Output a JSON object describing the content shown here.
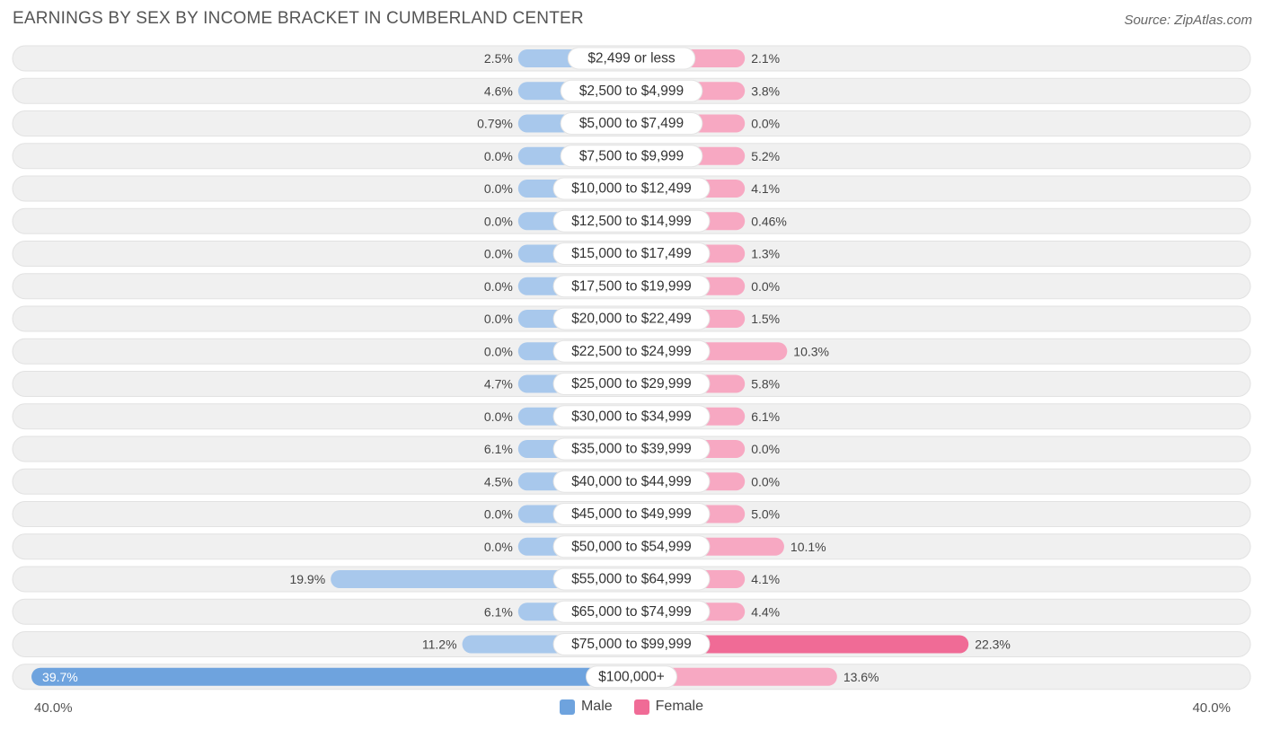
{
  "title": "EARNINGS BY SEX BY INCOME BRACKET IN CUMBERLAND CENTER",
  "source": "Source: ZipAtlas.com",
  "colors": {
    "male": "#a8c8ec",
    "male_strong": "#6ea3de",
    "female": "#f7a8c2",
    "female_strong": "#f06b96",
    "track": "#f0f0f0"
  },
  "chart_data": {
    "type": "bar",
    "orientation": "horizontal-diverging",
    "title": "EARNINGS BY SEX BY INCOME BRACKET IN CUMBERLAND CENTER",
    "categories": [
      "$2,499 or less",
      "$2,500 to $4,999",
      "$5,000 to $7,499",
      "$7,500 to $9,999",
      "$10,000 to $12,499",
      "$12,500 to $14,999",
      "$15,000 to $17,499",
      "$17,500 to $19,999",
      "$20,000 to $22,499",
      "$22,500 to $24,999",
      "$25,000 to $29,999",
      "$30,000 to $34,999",
      "$35,000 to $39,999",
      "$40,000 to $44,999",
      "$45,000 to $49,999",
      "$50,000 to $54,999",
      "$55,000 to $64,999",
      "$65,000 to $74,999",
      "$75,000 to $99,999",
      "$100,000+"
    ],
    "series": [
      {
        "name": "Male",
        "values": [
          2.5,
          4.6,
          0.79,
          0.0,
          0.0,
          0.0,
          0.0,
          0.0,
          0.0,
          0.0,
          4.7,
          0.0,
          6.1,
          4.5,
          0.0,
          0.0,
          19.9,
          6.1,
          11.2,
          39.7
        ],
        "labels": [
          "2.5%",
          "4.6%",
          "0.79%",
          "0.0%",
          "0.0%",
          "0.0%",
          "0.0%",
          "0.0%",
          "0.0%",
          "0.0%",
          "4.7%",
          "0.0%",
          "6.1%",
          "4.5%",
          "0.0%",
          "0.0%",
          "19.9%",
          "6.1%",
          "11.2%",
          "39.7%"
        ]
      },
      {
        "name": "Female",
        "values": [
          2.1,
          3.8,
          0.0,
          5.2,
          4.1,
          0.46,
          1.3,
          0.0,
          1.5,
          10.3,
          5.8,
          6.1,
          0.0,
          0.0,
          5.0,
          10.1,
          4.1,
          4.4,
          22.3,
          13.6
        ],
        "labels": [
          "2.1%",
          "3.8%",
          "0.0%",
          "5.2%",
          "4.1%",
          "0.46%",
          "1.3%",
          "0.0%",
          "1.5%",
          "10.3%",
          "5.8%",
          "6.1%",
          "0.0%",
          "0.0%",
          "5.0%",
          "10.1%",
          "4.1%",
          "4.4%",
          "22.3%",
          "13.6%"
        ]
      }
    ],
    "axis_max": 40.0,
    "axis_left_label": "40.0%",
    "axis_right_label": "40.0%",
    "legend": [
      "Male",
      "Female"
    ]
  }
}
